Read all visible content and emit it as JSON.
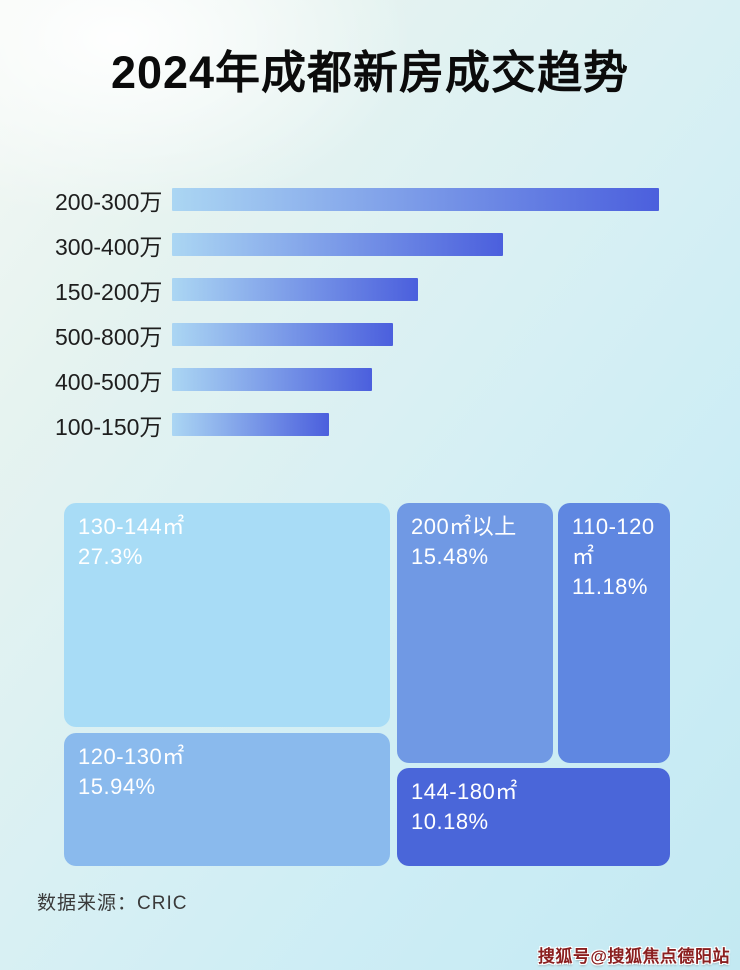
{
  "title": "2024年成都新房成交趋势",
  "footer": {
    "source": "数据来源：CRIC"
  },
  "watermark": "搜狐号@搜狐焦点德阳站",
  "colors": {
    "bar_gradient_start": "#abd6f3",
    "bar_gradient_end": "#4b5fdd",
    "title_text": "#0b0b0b",
    "treemap_text": "#ffffff",
    "watermark_red": "#8a1f1f"
  },
  "chart_data": [
    {
      "type": "bar",
      "orientation": "horizontal",
      "title": "2024年成都新房成交趋势",
      "categories": [
        "200-300万",
        "300-400万",
        "150-200万",
        "500-800万",
        "400-500万",
        "100-150万"
      ],
      "values": [
        100,
        68,
        50.5,
        45.4,
        41,
        32.2
      ],
      "value_note": "relative bar length in % of longest bar (no numeric axis labels shown in image)",
      "xlabel": "",
      "ylabel": "",
      "grid": false,
      "legend": false
    },
    {
      "type": "treemap",
      "title": "",
      "unit": "%",
      "items": [
        {
          "label": "130-144㎡",
          "value": 27.3,
          "display": "27.3%",
          "color": "#a8dcf6"
        },
        {
          "label": "120-130㎡",
          "value": 15.94,
          "display": "15.94%",
          "color": "#8abaed"
        },
        {
          "label": "200㎡以上",
          "value": 15.48,
          "display": "15.48%",
          "color": "#7099e4"
        },
        {
          "label": "110-120㎡",
          "value": 11.18,
          "display": "11.18%",
          "color": "#5f87e1"
        },
        {
          "label": "144-180㎡",
          "value": 10.18,
          "display": "10.18%",
          "color": "#4a66d9"
        }
      ]
    }
  ]
}
